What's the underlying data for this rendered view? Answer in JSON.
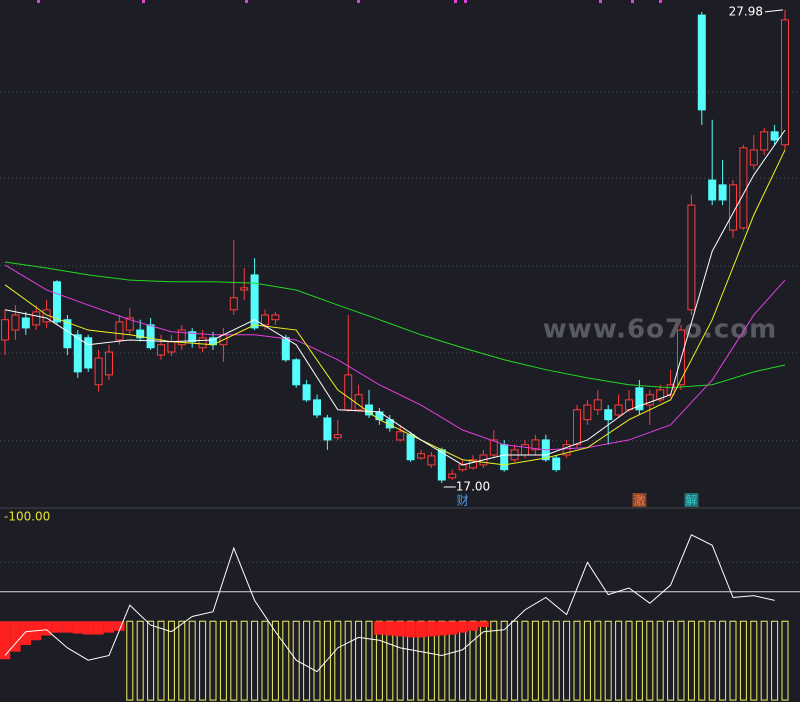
{
  "chart_data": {
    "type": "candlestick",
    "ylim": [
      16.42,
      28.21
    ],
    "grid_values": [
      26.08,
      24.08,
      22.04,
      20.02,
      17.98
    ],
    "up_color": "#ff3b3b",
    "down_color": "#54fcfc",
    "open": [
      20.32,
      20.55,
      20.83,
      20.67,
      20.74,
      21.67,
      20.79,
      20.44,
      20.37,
      19.28,
      19.51,
      20.32,
      20.55,
      20.55,
      20.67,
      19.97,
      20.04,
      20.21,
      20.51,
      20.14,
      20.37,
      20.21,
      21.02,
      21.48,
      21.83,
      20.67,
      20.79,
      20.37,
      19.86,
      19.28,
      18.93,
      18.51,
      18.05,
      18.7,
      18.7,
      18.81,
      18.65,
      18.47,
      18.0,
      18.12,
      17.58,
      17.42,
      17.77,
      17.12,
      17.31,
      17.35,
      17.42,
      17.65,
      17.89,
      17.54,
      17.65,
      17.77,
      18.0,
      17.58,
      17.65,
      17.89,
      18.47,
      18.7,
      18.7,
      18.58,
      18.7,
      19.21,
      18.81,
      18.93,
      19.05,
      19.28,
      21.02,
      27.86,
      24.03,
      23.92,
      22.87,
      22.92,
      24.38,
      24.73,
      25.15,
      24.85
    ],
    "high": [
      21.02,
      21.13,
      20.97,
      21.13,
      21.25,
      21.71,
      20.9,
      20.55,
      20.44,
      20.09,
      20.21,
      20.9,
      21.06,
      20.79,
      20.83,
      20.44,
      20.44,
      20.67,
      20.6,
      20.55,
      20.51,
      20.6,
      22.64,
      21.99,
      22.22,
      21.02,
      20.97,
      20.44,
      19.9,
      19.39,
      19.05,
      18.58,
      18.47,
      20.9,
      19.28,
      19.16,
      18.74,
      18.58,
      18.35,
      18.19,
      17.77,
      17.72,
      17.82,
      17.31,
      17.54,
      17.65,
      17.77,
      18.23,
      18.0,
      17.89,
      18.0,
      18.12,
      18.12,
      17.65,
      18.0,
      18.81,
      18.93,
      19.16,
      18.81,
      19.05,
      19.16,
      19.39,
      19.16,
      19.28,
      19.63,
      20.67,
      23.69,
      27.93,
      25.43,
      24.5,
      24.03,
      24.85,
      25.08,
      25.24,
      25.31,
      27.98
    ],
    "low": [
      19.97,
      20.32,
      20.44,
      20.55,
      20.6,
      20.67,
      19.97,
      19.44,
      19.58,
      19.12,
      19.39,
      20.21,
      20.44,
      20.28,
      20.09,
      19.86,
      19.95,
      20.09,
      20.14,
      20.04,
      20.09,
      19.81,
      20.9,
      21.25,
      20.55,
      20.55,
      20.67,
      19.81,
      19.21,
      18.88,
      18.51,
      17.77,
      18.0,
      18.65,
      18.65,
      18.51,
      18.35,
      18.19,
      17.96,
      17.49,
      17.54,
      17.35,
      17.0,
      17.07,
      17.26,
      17.31,
      17.35,
      17.58,
      17.26,
      17.49,
      17.58,
      17.65,
      17.49,
      17.26,
      17.58,
      17.82,
      18.35,
      18.58,
      17.89,
      18.51,
      18.65,
      18.58,
      18.35,
      18.88,
      18.98,
      19.16,
      20.9,
      25.31,
      23.45,
      23.45,
      22.69,
      22.87,
      24.27,
      24.61,
      24.85,
      24.73
    ],
    "close": [
      20.79,
      20.9,
      20.6,
      20.97,
      21.02,
      20.74,
      20.14,
      19.58,
      19.67,
      19.9,
      20.04,
      20.74,
      20.83,
      20.37,
      20.14,
      20.21,
      20.28,
      20.55,
      20.28,
      20.37,
      20.21,
      20.44,
      21.3,
      21.53,
      20.6,
      20.9,
      20.9,
      19.86,
      19.28,
      18.93,
      18.58,
      18.0,
      18.12,
      19.51,
      19.05,
      18.58,
      18.47,
      18.28,
      18.19,
      17.54,
      17.68,
      17.63,
      17.07,
      17.21,
      17.42,
      17.54,
      17.65,
      18.0,
      17.31,
      17.77,
      17.89,
      18.0,
      17.54,
      17.31,
      17.89,
      18.7,
      18.81,
      18.93,
      18.47,
      18.81,
      18.93,
      18.7,
      19.05,
      19.16,
      19.28,
      20.55,
      23.45,
      25.66,
      23.57,
      23.57,
      23.92,
      24.78,
      24.73,
      25.15,
      24.96,
      27.75
    ],
    "ma_x": [
      0,
      4,
      8,
      12,
      16,
      20,
      24,
      28,
      32,
      36,
      40,
      44,
      48,
      52,
      56,
      60,
      64,
      68,
      72,
      75
    ],
    "ma_series": [
      {
        "color": "#22d822",
        "values": [
          22.13,
          21.99,
          21.83,
          21.71,
          21.67,
          21.67,
          21.64,
          21.48,
          21.13,
          20.79,
          20.44,
          20.14,
          19.86,
          19.63,
          19.44,
          19.28,
          19.21,
          19.28,
          19.58,
          19.74
        ]
      },
      {
        "color": "#e040e0",
        "values": [
          22.06,
          21.48,
          21.13,
          20.79,
          20.51,
          20.44,
          20.44,
          20.32,
          19.86,
          19.28,
          18.81,
          18.23,
          17.89,
          17.77,
          17.82,
          18.0,
          18.35,
          19.39,
          20.9,
          21.71
        ]
      },
      {
        "color": "#f0f020",
        "values": [
          21.6,
          20.9,
          20.55,
          20.44,
          20.28,
          20.21,
          20.67,
          20.55,
          19.16,
          18.47,
          18.0,
          17.54,
          17.42,
          17.58,
          17.82,
          18.47,
          18.93,
          20.79,
          23.22,
          24.73
        ]
      },
      {
        "color": "#ffffff",
        "values": [
          21.02,
          20.83,
          20.21,
          20.32,
          20.28,
          20.32,
          20.79,
          20.21,
          18.7,
          18.65,
          18.0,
          17.42,
          17.65,
          17.65,
          18.0,
          18.7,
          19.05,
          22.38,
          24.15,
          25.19
        ]
      }
    ],
    "annotations": [
      {
        "value": 27.98,
        "label": "27.98"
      },
      {
        "value": 17,
        "label": "17.00"
      }
    ],
    "events": [
      {
        "label": "财",
        "index": 44,
        "color": "#4a9cf0"
      },
      {
        "label": "激",
        "index": 61,
        "color": "#ff7a3a"
      },
      {
        "label": "解",
        "index": 66,
        "color": "#33cccc"
      }
    ],
    "watermark": "www.6o7o.com",
    "indicator": {
      "label": "-100.00",
      "ylim": [
        -85,
        115
      ],
      "grid_values": [
        62
      ],
      "level": 31,
      "osc_x": [
        0,
        2,
        4,
        6,
        8,
        10,
        12,
        14,
        16,
        18,
        20,
        22,
        24,
        26,
        28,
        30,
        32,
        34,
        36,
        38,
        40,
        42,
        44,
        46,
        48,
        50,
        52,
        54,
        56,
        58,
        60,
        62,
        64,
        66,
        68,
        70,
        72,
        74
      ],
      "osc": [
        -36,
        -11,
        -9,
        -28,
        -41,
        -36,
        17,
        -4,
        -11,
        5,
        10,
        77,
        22,
        -11,
        -41,
        -53,
        -28,
        -17,
        -20,
        -28,
        -32,
        -36,
        -30,
        -11,
        -9,
        12,
        25,
        7,
        62,
        28,
        35,
        19,
        38,
        91,
        80,
        25,
        27,
        22
      ],
      "red_bars": [
        -40,
        -32,
        -25,
        -20,
        -15,
        -12,
        -12,
        -13,
        -14,
        -14,
        -12,
        -10,
        null,
        null,
        null,
        null,
        null,
        null,
        null,
        null,
        null,
        null,
        null,
        null,
        null,
        null,
        null,
        null,
        null,
        null,
        null,
        null,
        null,
        null,
        null,
        null,
        -14,
        -15,
        -16,
        -17,
        -17,
        -16,
        -15,
        -14,
        -12,
        -10,
        -6,
        null,
        null,
        null,
        null,
        null,
        null,
        null,
        null,
        null,
        null,
        null,
        null,
        null,
        null,
        null,
        null,
        null,
        null,
        null,
        null,
        null,
        null,
        null,
        null,
        null,
        null,
        null,
        null,
        null
      ],
      "yellow_bars": [
        null,
        null,
        null,
        null,
        null,
        null,
        null,
        null,
        null,
        null,
        null,
        null,
        -83,
        -83,
        -83,
        -83,
        -83,
        -83,
        -83,
        -83,
        -83,
        -83,
        -83,
        -83,
        -83,
        -83,
        -83,
        -83,
        -83,
        -83,
        -83,
        -83,
        -83,
        -83,
        -83,
        -83,
        -83,
        -83,
        -83,
        -83,
        -83,
        -83,
        -83,
        -83,
        -83,
        -83,
        -83,
        -83,
        -83,
        -83,
        -83,
        -83,
        -83,
        -83,
        -83,
        -83,
        -83,
        -83,
        -83,
        -83,
        -83,
        -83,
        -83,
        -83,
        -83,
        -83,
        -83,
        -83,
        -83,
        -83,
        -83,
        -83,
        -83,
        -83,
        -83,
        -83
      ],
      "red_color": "#ff2020",
      "yellow_color": "#f0f060",
      "osc_color": "#ffffff"
    }
  }
}
